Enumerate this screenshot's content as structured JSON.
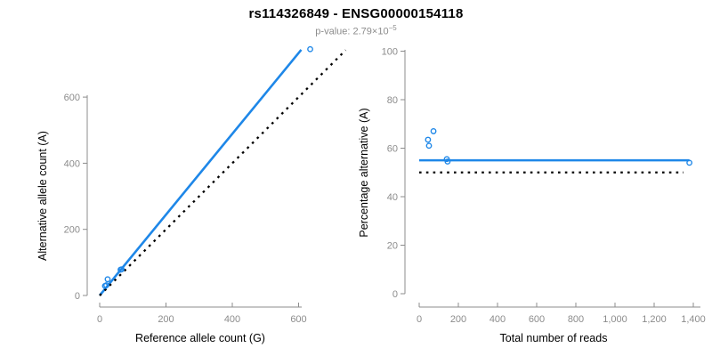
{
  "header": {
    "title": "rs114326849 - ENSG00000154118",
    "pvalue_label": "p-value: 2.79×10",
    "pvalue_exponent": "−5"
  },
  "colors": {
    "accent_blue": "#1E87E8",
    "dotted_black": "#000000",
    "axis_gray": "#8C8C8C",
    "tick_label_gray": "#8C8C8C",
    "axis_title_black": "#000000",
    "background": "#FFFFFF"
  },
  "chart_data": [
    {
      "type": "scatter",
      "panel": "left",
      "xlabel": "Reference allele count (G)",
      "ylabel": "Alternative allele count (A)",
      "xlim": [
        0,
        745
      ],
      "ylim": [
        0,
        755
      ],
      "xticks": [
        0,
        200,
        400,
        600
      ],
      "xtick_labels": [
        "0",
        "200",
        "400",
        "600"
      ],
      "yticks": [
        0,
        200,
        400,
        600
      ],
      "ytick_labels": [
        "0",
        "200",
        "400",
        "600"
      ],
      "grid": false,
      "legend": "none",
      "points": [
        {
          "x": 24,
          "y": 49
        },
        {
          "x": 16,
          "y": 29
        },
        {
          "x": 20,
          "y": 31
        },
        {
          "x": 63,
          "y": 78
        },
        {
          "x": 66,
          "y": 79
        },
        {
          "x": 635,
          "y": 745
        }
      ],
      "lines": [
        {
          "name": "fit-line",
          "style": "solid",
          "color_key": "accent_blue",
          "from": {
            "x": 0,
            "y": 0
          },
          "to": {
            "x": 608,
            "y": 743
          }
        },
        {
          "name": "identity-line",
          "style": "dotted",
          "color_key": "dotted_black",
          "from": {
            "x": 0,
            "y": 0
          },
          "to": {
            "x": 742,
            "y": 742
          }
        }
      ]
    },
    {
      "type": "scatter",
      "panel": "right",
      "xlabel": "Total number of reads",
      "ylabel": "Percentage alternative (A)",
      "xlim": [
        0,
        1435
      ],
      "ylim": [
        0,
        100
      ],
      "xticks": [
        0,
        200,
        400,
        600,
        800,
        1000,
        1200,
        1400
      ],
      "xtick_labels": [
        "0",
        "200",
        "400",
        "600",
        "800",
        "1,000",
        "1,200",
        "1,400"
      ],
      "yticks": [
        0,
        20,
        40,
        60,
        80,
        100
      ],
      "ytick_labels": [
        "0",
        "20",
        "40",
        "60",
        "80",
        "100"
      ],
      "grid": false,
      "legend": "none",
      "points": [
        {
          "x": 73,
          "y": 67
        },
        {
          "x": 45,
          "y": 63.5
        },
        {
          "x": 50,
          "y": 61
        },
        {
          "x": 141,
          "y": 55.5
        },
        {
          "x": 145,
          "y": 54.5
        },
        {
          "x": 1380,
          "y": 54
        }
      ],
      "lines": [
        {
          "name": "fit-line",
          "style": "solid",
          "color_key": "accent_blue",
          "from": {
            "x": 0,
            "y": 55
          },
          "to": {
            "x": 1380,
            "y": 55
          }
        },
        {
          "name": "identity-line",
          "style": "dotted",
          "color_key": "dotted_black",
          "from": {
            "x": 0,
            "y": 50
          },
          "to": {
            "x": 1350,
            "y": 50
          }
        }
      ]
    }
  ]
}
